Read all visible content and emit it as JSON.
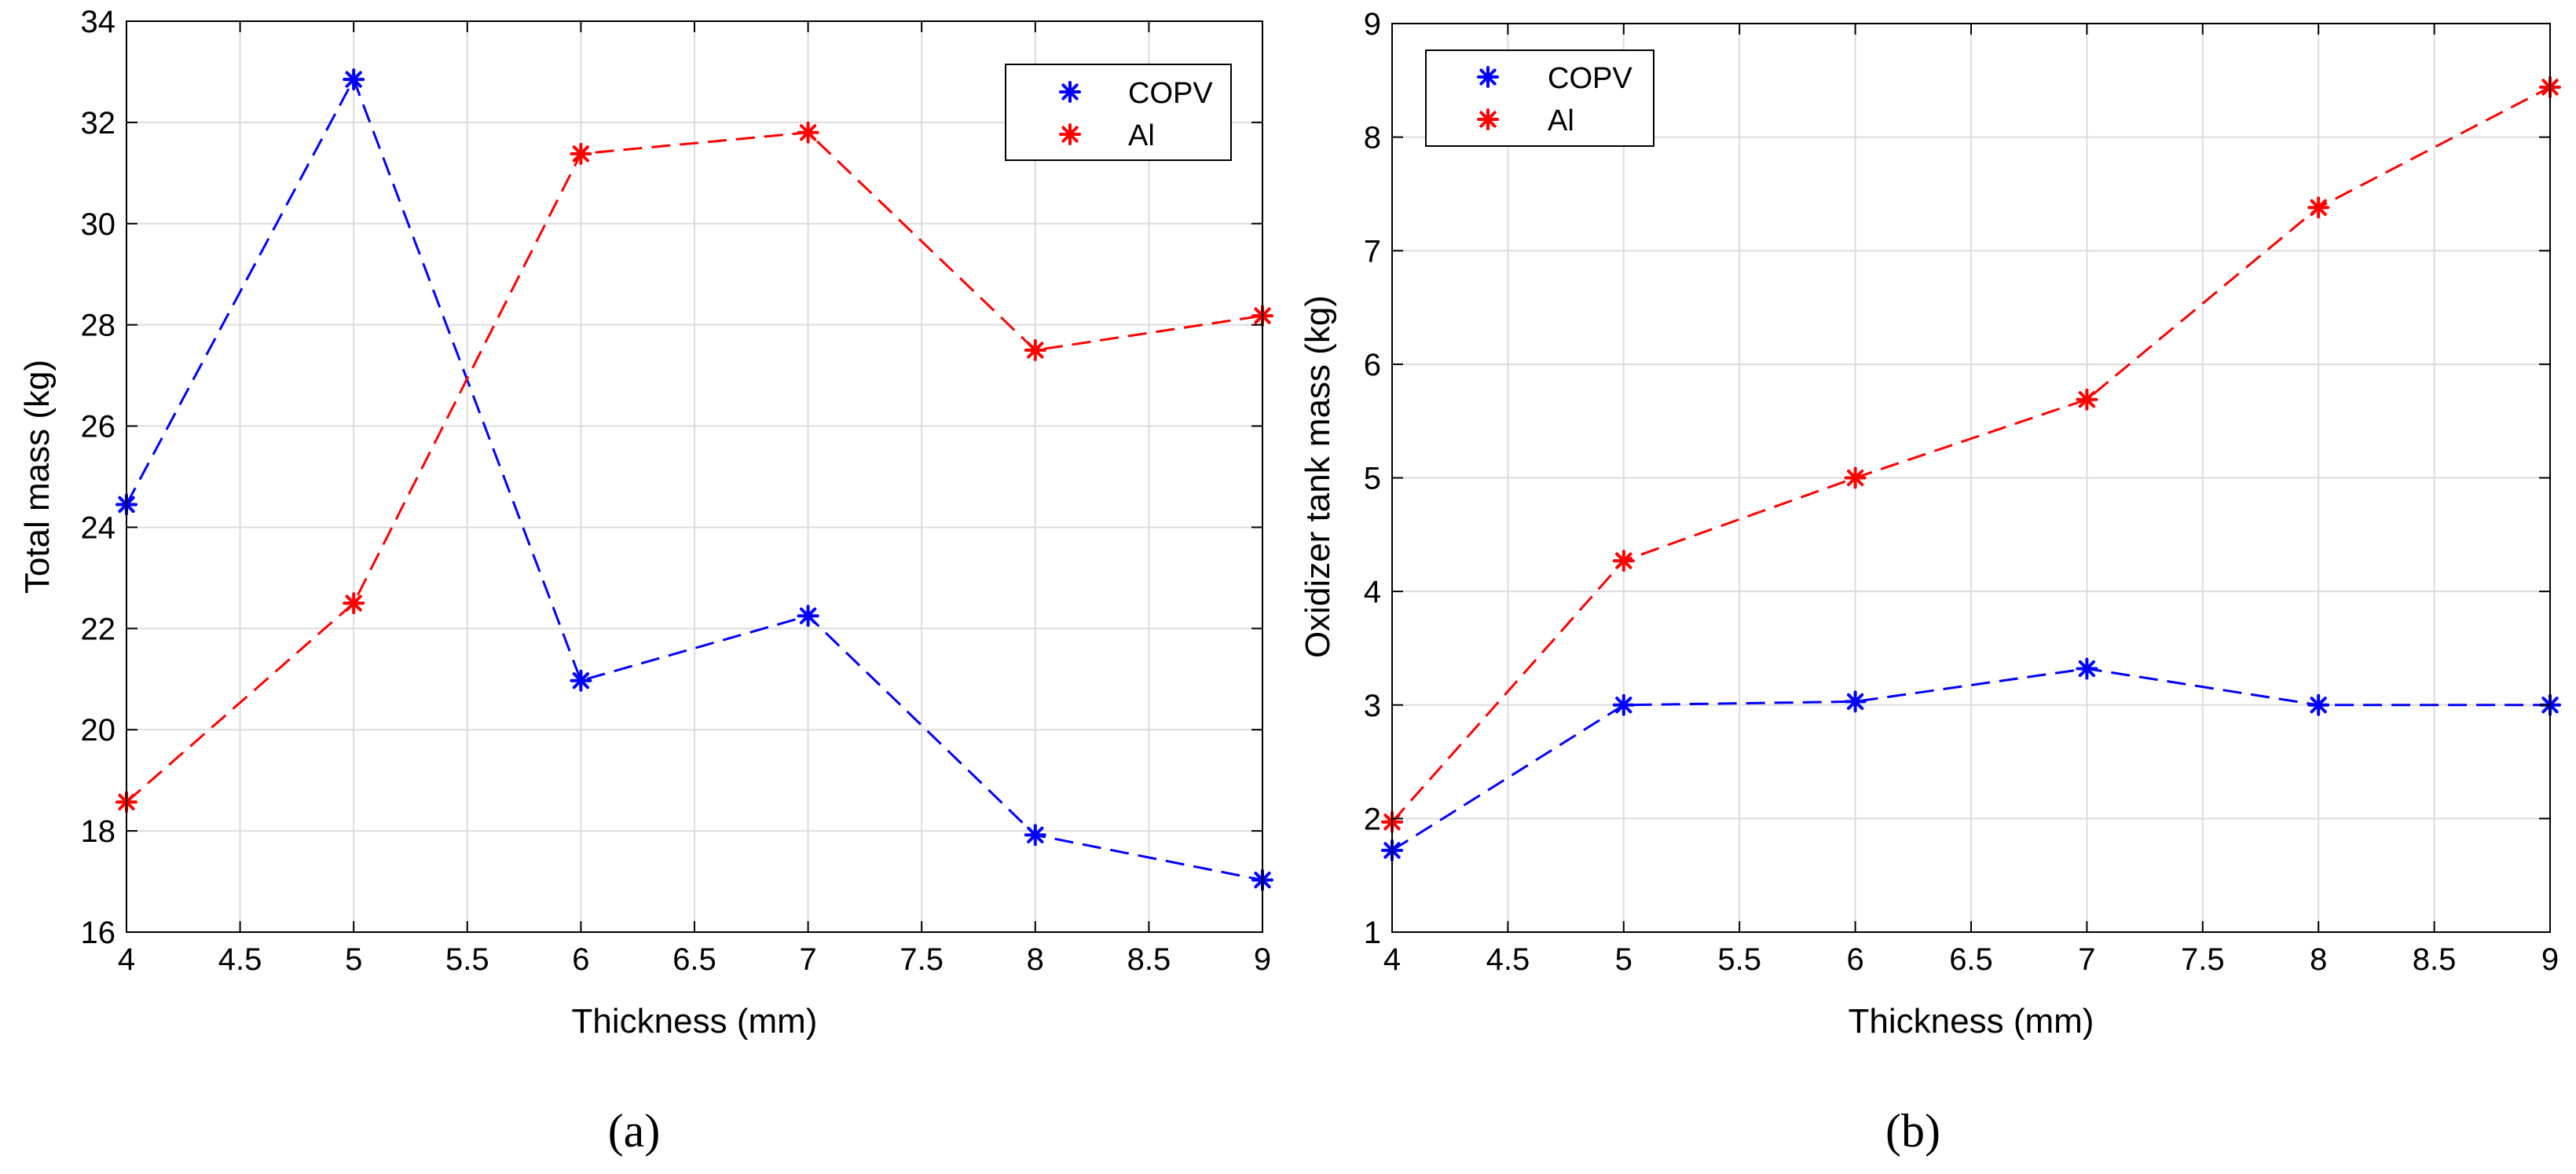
{
  "colors": {
    "copv": "#0000ff",
    "al": "#ff0000",
    "grid": "#dcdcdc",
    "axis": "#000000"
  },
  "chart_data": [
    {
      "type": "line",
      "id": "a",
      "caption": "(a)",
      "xlabel": "Thickness (mm)",
      "ylabel": "Total mass (kg)",
      "xlim": [
        4,
        9
      ],
      "ylim": [
        16,
        34
      ],
      "xticks": [
        4,
        4.5,
        5,
        5.5,
        6,
        6.5,
        7,
        7.5,
        8,
        8.5,
        9
      ],
      "xtick_labels": [
        "4",
        "4.5",
        "5",
        "5.5",
        "6",
        "6.5",
        "7",
        "7.5",
        "8",
        "8.5",
        "9"
      ],
      "yticks": [
        16,
        18,
        20,
        22,
        24,
        26,
        28,
        30,
        32,
        34
      ],
      "ytick_labels": [
        "16",
        "18",
        "20",
        "22",
        "24",
        "26",
        "28",
        "30",
        "32",
        "34"
      ],
      "grid": true,
      "legend": "top-right",
      "marker": "*",
      "line_style": "dashed",
      "x": [
        4,
        5,
        6,
        7,
        8,
        9
      ],
      "series": [
        {
          "name": "COPV",
          "color": "#0000ff",
          "values": [
            24.45,
            32.85,
            20.97,
            22.25,
            17.92,
            17.03
          ]
        },
        {
          "name": "Al",
          "color": "#ff0000",
          "values": [
            18.57,
            22.5,
            31.38,
            31.8,
            27.5,
            28.18
          ]
        }
      ]
    },
    {
      "type": "line",
      "id": "b",
      "caption": "(b)",
      "xlabel": "Thickness (mm)",
      "ylabel": "Oxidizer tank mass (kg)",
      "xlim": [
        4,
        9
      ],
      "ylim": [
        1,
        9
      ],
      "xticks": [
        4,
        4.5,
        5,
        5.5,
        6,
        6.5,
        7,
        7.5,
        8,
        8.5,
        9
      ],
      "xtick_labels": [
        "4",
        "4.5",
        "5",
        "5.5",
        "6",
        "6.5",
        "7",
        "7.5",
        "8",
        "8.5",
        "9"
      ],
      "yticks": [
        1,
        2,
        3,
        4,
        5,
        6,
        7,
        8,
        9
      ],
      "ytick_labels": [
        "1",
        "2",
        "3",
        "4",
        "5",
        "6",
        "7",
        "8",
        "9"
      ],
      "grid": true,
      "legend": "top-left",
      "marker": "*",
      "line_style": "dashed",
      "x": [
        4,
        5,
        6,
        7,
        8,
        9
      ],
      "series": [
        {
          "name": "COPV",
          "color": "#0000ff",
          "values": [
            1.72,
            3.0,
            3.03,
            3.32,
            3.0,
            3.0
          ]
        },
        {
          "name": "Al",
          "color": "#ff0000",
          "values": [
            1.97,
            4.27,
            5.0,
            5.69,
            7.38,
            8.44
          ]
        }
      ]
    }
  ]
}
